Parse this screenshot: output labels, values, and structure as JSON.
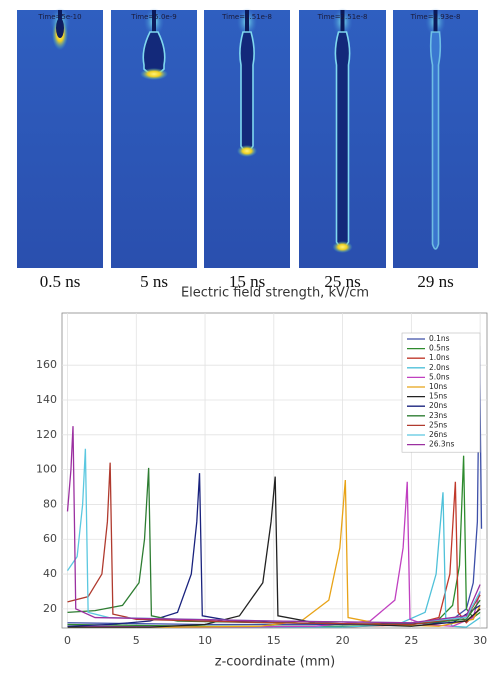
{
  "panels": [
    {
      "time_label": "Time=5e-10",
      "caption": "0.5 ns"
    },
    {
      "time_label": "Time=5.0e-9",
      "caption": "5 ns"
    },
    {
      "time_label": "Time=1.51e-8",
      "caption": "15 ns"
    },
    {
      "time_label": "Time=2.51e-8",
      "caption": "25 ns"
    },
    {
      "time_label": "Time=2.93e-8",
      "caption": "29 ns"
    }
  ],
  "chart_data": {
    "type": "line",
    "title": "Electric field strength, kV/cm",
    "xlabel": "z-coordinate (mm)",
    "xlim": [
      -0.4,
      30.5
    ],
    "ylim": [
      9,
      190
    ],
    "xticks": [
      0,
      5,
      10,
      15,
      20,
      25,
      30
    ],
    "yticks": [
      20,
      40,
      60,
      80,
      100,
      120,
      140,
      160
    ],
    "grid": true,
    "legend": "upper right",
    "series": [
      {
        "name": "0.1ns",
        "color": "#3d4fa8",
        "x": [
          0,
          10,
          20,
          26,
          28,
          29,
          29.5,
          29.8,
          29.95,
          30.1
        ],
        "values": [
          12,
          11,
          11,
          12,
          14,
          20,
          35,
          70,
          171,
          66
        ]
      },
      {
        "name": "0.5ns",
        "color": "#2e8b2e",
        "x": [
          0,
          10,
          20,
          25,
          27,
          28,
          28.5,
          28.8,
          29.0,
          29.5,
          30
        ],
        "values": [
          11,
          10,
          10,
          11,
          14,
          22,
          45,
          108,
          20,
          15,
          18
        ]
      },
      {
        "name": "1.0ns",
        "color": "#c0392b",
        "x": [
          0,
          10,
          20,
          25,
          27,
          27.8,
          28.2,
          28.4,
          29,
          30
        ],
        "values": [
          10,
          9.5,
          9.5,
          11,
          15,
          40,
          93,
          18,
          12,
          20
        ]
      },
      {
        "name": "2.0ns",
        "color": "#4fc1d9",
        "x": [
          0,
          10,
          20,
          24,
          26,
          26.8,
          27.3,
          27.5,
          28,
          29,
          30
        ],
        "values": [
          10,
          9.5,
          9.5,
          11,
          18,
          40,
          87,
          15,
          10,
          9.5,
          15
        ]
      },
      {
        "name": "5.0ns",
        "color": "#c040c0",
        "x": [
          0,
          10,
          18,
          22,
          23.8,
          24.4,
          24.7,
          24.9,
          26,
          28,
          29.5,
          30
        ],
        "values": [
          10,
          9.5,
          10,
          13,
          25,
          55,
          93,
          14,
          11,
          10,
          15,
          30
        ]
      },
      {
        "name": "10ns",
        "color": "#e8a317",
        "x": [
          0,
          8,
          14,
          17,
          19,
          19.8,
          20.2,
          20.4,
          23,
          27,
          29.5,
          30
        ],
        "values": [
          9.5,
          9.5,
          10,
          13,
          25,
          55,
          94,
          15,
          11,
          10,
          14,
          22
        ]
      },
      {
        "name": "15ns",
        "color": "#222222",
        "x": [
          0,
          6,
          10,
          12.5,
          14.2,
          14.8,
          15.1,
          15.3,
          18,
          25,
          29,
          30
        ],
        "values": [
          9.5,
          9.5,
          11,
          16,
          35,
          70,
          96,
          16,
          12,
          10,
          13,
          20
        ]
      },
      {
        "name": "20ns",
        "color": "#1a237e",
        "x": [
          0,
          3,
          6,
          8,
          9,
          9.4,
          9.6,
          9.8,
          12,
          20,
          28,
          30
        ],
        "values": [
          10,
          11,
          13,
          18,
          40,
          70,
          98,
          16,
          13,
          11,
          12,
          22
        ]
      },
      {
        "name": "23ns",
        "color": "#2e7d32",
        "x": [
          0,
          2,
          4,
          5.2,
          5.6,
          5.9,
          6.1,
          8,
          15,
          25,
          29,
          30
        ],
        "values": [
          18,
          19,
          22,
          35,
          60,
          101,
          16,
          13,
          12,
          11,
          14,
          25
        ]
      },
      {
        "name": "25ns",
        "color": "#b03a2e",
        "x": [
          0,
          1.5,
          2.5,
          2.9,
          3.1,
          3.3,
          5,
          15,
          25,
          29,
          30
        ],
        "values": [
          24,
          27,
          40,
          70,
          104,
          17,
          14,
          12,
          11,
          15,
          28
        ]
      },
      {
        "name": "26ns",
        "color": "#5bc8e0",
        "x": [
          0,
          0.7,
          1.1,
          1.3,
          1.5,
          3,
          15,
          25,
          29,
          30
        ],
        "values": [
          42,
          50,
          80,
          112,
          18,
          15,
          13,
          12,
          15,
          30
        ]
      },
      {
        "name": "26.3ns",
        "color": "#9b30a0",
        "x": [
          0,
          0.25,
          0.4,
          0.6,
          2,
          15,
          25,
          29,
          30
        ],
        "values": [
          76,
          100,
          125,
          20,
          15,
          13,
          12,
          16,
          34
        ]
      }
    ]
  }
}
